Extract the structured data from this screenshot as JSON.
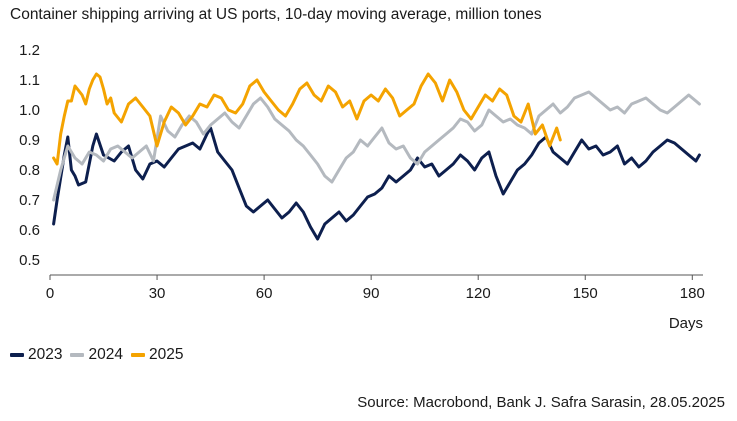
{
  "chart_data": {
    "type": "line",
    "title": "Container shipping arriving at US ports, 10-day moving average, million tones",
    "xlabel": "Days",
    "ylabel": "",
    "xlim": [
      0,
      183
    ],
    "ylim": [
      0.45,
      1.25
    ],
    "xticks": [
      0,
      30,
      60,
      90,
      120,
      150,
      180
    ],
    "yticks": [
      0.5,
      0.6,
      0.7,
      0.8,
      0.9,
      1.0,
      1.1,
      1.2
    ],
    "ytick_labels": [
      "0.5",
      "0.6",
      "0.7",
      "0.8",
      "0.9",
      "1.0",
      "1.1",
      "1.2"
    ],
    "grid": false,
    "legend_position": "bottom-left",
    "series": [
      {
        "name": "2023",
        "color": "#0d1f4e",
        "x": [
          1,
          2,
          4,
          5,
          6,
          7,
          8,
          10,
          12,
          13,
          15,
          18,
          20,
          22,
          24,
          26,
          28,
          30,
          32,
          34,
          36,
          38,
          40,
          42,
          44,
          45,
          47,
          49,
          51,
          53,
          55,
          57,
          59,
          61,
          63,
          65,
          67,
          69,
          71,
          73,
          75,
          77,
          79,
          81,
          83,
          85,
          87,
          89,
          91,
          93,
          95,
          97,
          99,
          101,
          103,
          105,
          107,
          109,
          111,
          113,
          115,
          117,
          119,
          121,
          123,
          125,
          127,
          129,
          131,
          133,
          135,
          137,
          139,
          141,
          143,
          145,
          147,
          149,
          151,
          153,
          155,
          157,
          159,
          161,
          163,
          165,
          167,
          169,
          171,
          173,
          175,
          177,
          179,
          181,
          182
        ],
        "y": [
          0.62,
          0.7,
          0.85,
          0.91,
          0.8,
          0.78,
          0.75,
          0.76,
          0.88,
          0.92,
          0.85,
          0.83,
          0.86,
          0.88,
          0.8,
          0.77,
          0.82,
          0.83,
          0.81,
          0.84,
          0.87,
          0.88,
          0.89,
          0.87,
          0.92,
          0.94,
          0.86,
          0.83,
          0.8,
          0.74,
          0.68,
          0.66,
          0.68,
          0.7,
          0.67,
          0.64,
          0.66,
          0.69,
          0.66,
          0.61,
          0.57,
          0.62,
          0.64,
          0.66,
          0.63,
          0.65,
          0.68,
          0.71,
          0.72,
          0.74,
          0.78,
          0.76,
          0.78,
          0.8,
          0.84,
          0.81,
          0.82,
          0.78,
          0.8,
          0.82,
          0.85,
          0.83,
          0.8,
          0.84,
          0.86,
          0.78,
          0.72,
          0.76,
          0.8,
          0.82,
          0.85,
          0.89,
          0.91,
          0.86,
          0.84,
          0.82,
          0.86,
          0.9,
          0.87,
          0.88,
          0.85,
          0.86,
          0.88,
          0.82,
          0.84,
          0.81,
          0.83,
          0.86,
          0.88,
          0.9,
          0.89,
          0.87,
          0.85,
          0.83,
          0.85
        ]
      },
      {
        "name": "2024",
        "color": "#b4b9bf",
        "x": [
          1,
          3,
          5,
          7,
          9,
          11,
          13,
          15,
          17,
          19,
          21,
          23,
          25,
          27,
          29,
          31,
          33,
          35,
          37,
          39,
          41,
          43,
          45,
          47,
          49,
          51,
          53,
          55,
          57,
          59,
          61,
          63,
          65,
          67,
          69,
          71,
          73,
          75,
          77,
          79,
          81,
          83,
          85,
          87,
          89,
          91,
          93,
          95,
          97,
          99,
          101,
          103,
          105,
          107,
          109,
          111,
          113,
          115,
          117,
          119,
          121,
          123,
          125,
          127,
          129,
          131,
          133,
          135,
          137,
          139,
          141,
          143,
          145,
          147,
          149,
          151,
          153,
          155,
          157,
          159,
          161,
          163,
          165,
          167,
          169,
          171,
          173,
          175,
          177,
          179,
          181,
          182
        ],
        "y": [
          0.7,
          0.8,
          0.88,
          0.84,
          0.82,
          0.86,
          0.85,
          0.83,
          0.87,
          0.88,
          0.86,
          0.84,
          0.86,
          0.88,
          0.83,
          0.98,
          0.93,
          0.91,
          0.95,
          0.98,
          0.96,
          0.92,
          0.95,
          0.97,
          0.99,
          0.96,
          0.94,
          0.98,
          1.02,
          1.04,
          1.01,
          0.97,
          0.95,
          0.93,
          0.9,
          0.88,
          0.85,
          0.82,
          0.78,
          0.76,
          0.8,
          0.84,
          0.86,
          0.9,
          0.88,
          0.91,
          0.94,
          0.89,
          0.87,
          0.88,
          0.84,
          0.82,
          0.86,
          0.88,
          0.9,
          0.92,
          0.94,
          0.97,
          0.96,
          0.93,
          0.95,
          1.0,
          0.98,
          0.96,
          0.97,
          0.95,
          0.94,
          0.92,
          0.98,
          1.0,
          1.02,
          0.99,
          1.01,
          1.04,
          1.05,
          1.06,
          1.04,
          1.02,
          1.0,
          1.01,
          0.99,
          1.02,
          1.03,
          1.04,
          1.02,
          1.0,
          0.99,
          1.01,
          1.03,
          1.05,
          1.03,
          1.02
        ]
      },
      {
        "name": "2025",
        "color": "#f4a300",
        "x": [
          1,
          2,
          3,
          4,
          5,
          6,
          7,
          9,
          10,
          11,
          12,
          13,
          14,
          15,
          16,
          17,
          18,
          20,
          22,
          24,
          26,
          28,
          30,
          32,
          34,
          36,
          38,
          40,
          42,
          44,
          46,
          48,
          50,
          52,
          54,
          56,
          58,
          60,
          62,
          64,
          66,
          68,
          70,
          72,
          74,
          76,
          78,
          80,
          82,
          84,
          86,
          88,
          90,
          92,
          94,
          96,
          98,
          100,
          102,
          104,
          106,
          108,
          110,
          112,
          114,
          116,
          118,
          120,
          122,
          124,
          126,
          128,
          130,
          132,
          134,
          136,
          138,
          140,
          142,
          143
        ],
        "y": [
          0.84,
          0.82,
          0.92,
          0.98,
          1.03,
          1.03,
          1.08,
          1.05,
          1.02,
          1.07,
          1.1,
          1.12,
          1.11,
          1.07,
          1.02,
          1.04,
          0.99,
          0.96,
          1.02,
          1.04,
          1.01,
          0.98,
          0.88,
          0.96,
          1.01,
          0.99,
          0.95,
          0.98,
          1.02,
          1.01,
          1.05,
          1.04,
          1.0,
          0.99,
          1.02,
          1.08,
          1.1,
          1.06,
          1.03,
          1.0,
          0.98,
          1.02,
          1.07,
          1.09,
          1.05,
          1.03,
          1.08,
          1.06,
          1.01,
          1.03,
          0.97,
          1.03,
          1.05,
          1.03,
          1.07,
          1.04,
          0.98,
          1.0,
          1.02,
          1.08,
          1.12,
          1.09,
          1.03,
          1.1,
          1.06,
          1.0,
          0.97,
          1.01,
          1.05,
          1.03,
          1.07,
          1.05,
          0.98,
          0.96,
          1.02,
          0.92,
          0.95,
          0.88,
          0.94,
          0.9
        ]
      }
    ],
    "source": "Source: Macrobond, Bank J. Safra Sarasin, 28.05.2025"
  }
}
